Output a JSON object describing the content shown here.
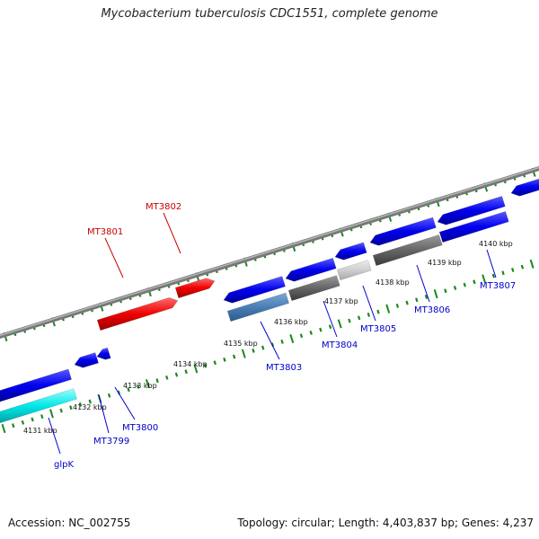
{
  "title": "Mycobacterium tuberculosis CDC1551, complete genome",
  "accession_text": "Accession: NC_002755",
  "topology_text": "Topology: circular; Length: 4,403,837 bp; Genes: 4,237",
  "ticks": [
    "4131 kbp",
    "4132 kbp",
    "4133 kbp",
    "4134 kbp",
    "4135 kbp",
    "4136 kbp",
    "4137 kbp",
    "4138 kbp",
    "4139 kbp",
    "4140 kbp"
  ],
  "genes": [
    {
      "label": "glpK",
      "strand": "reverse",
      "color": "#0000ee"
    },
    {
      "label": "MT3799",
      "strand": "reverse",
      "color": "#0000ee"
    },
    {
      "label": "MT3800",
      "strand": "reverse",
      "color": "#0000ee"
    },
    {
      "label": "MT3801",
      "strand": "forward",
      "color": "#dd0000"
    },
    {
      "label": "MT3802",
      "strand": "forward",
      "color": "#dd0000"
    },
    {
      "label": "MT3803",
      "strand": "reverse",
      "color": "#0000ee"
    },
    {
      "label": "MT3804",
      "strand": "reverse",
      "color": "#0000ee"
    },
    {
      "label": "MT3805",
      "strand": "reverse",
      "color": "#0000ee"
    },
    {
      "label": "MT3806",
      "strand": "reverse",
      "color": "#0000ee"
    },
    {
      "label": "MT3807",
      "strand": "reverse",
      "color": "#0000ee"
    }
  ],
  "colors": {
    "forward": "#dd0000",
    "reverse": "#0000ee",
    "backbone": "#888888",
    "ticks": "#1a8a1a"
  }
}
